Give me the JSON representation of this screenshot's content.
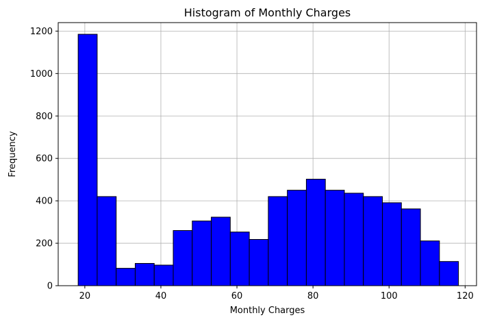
{
  "chart_data": {
    "type": "bar",
    "title": "Histogram of Monthly Charges",
    "xlabel": "Monthly Charges",
    "ylabel": "Frequency",
    "xlim": [
      13,
      123
    ],
    "ylim": [
      0,
      1240
    ],
    "xticks": [
      20,
      40,
      60,
      80,
      100,
      120
    ],
    "yticks": [
      0,
      200,
      400,
      600,
      800,
      1000,
      1200
    ],
    "grid": true,
    "bar_color": "#0000ff",
    "edge_color": "#000000",
    "bin_edges": [
      18.25,
      23.25,
      28.25,
      33.25,
      38.25,
      43.25,
      48.25,
      53.25,
      58.25,
      63.25,
      68.25,
      73.25,
      78.25,
      83.25,
      88.25,
      93.25,
      98.25,
      103.25,
      108.25,
      113.25,
      118.25
    ],
    "values": [
      1185,
      420,
      82,
      105,
      97,
      260,
      305,
      323,
      253,
      218,
      420,
      450,
      502,
      450,
      436,
      420,
      391,
      362,
      211,
      114
    ]
  }
}
